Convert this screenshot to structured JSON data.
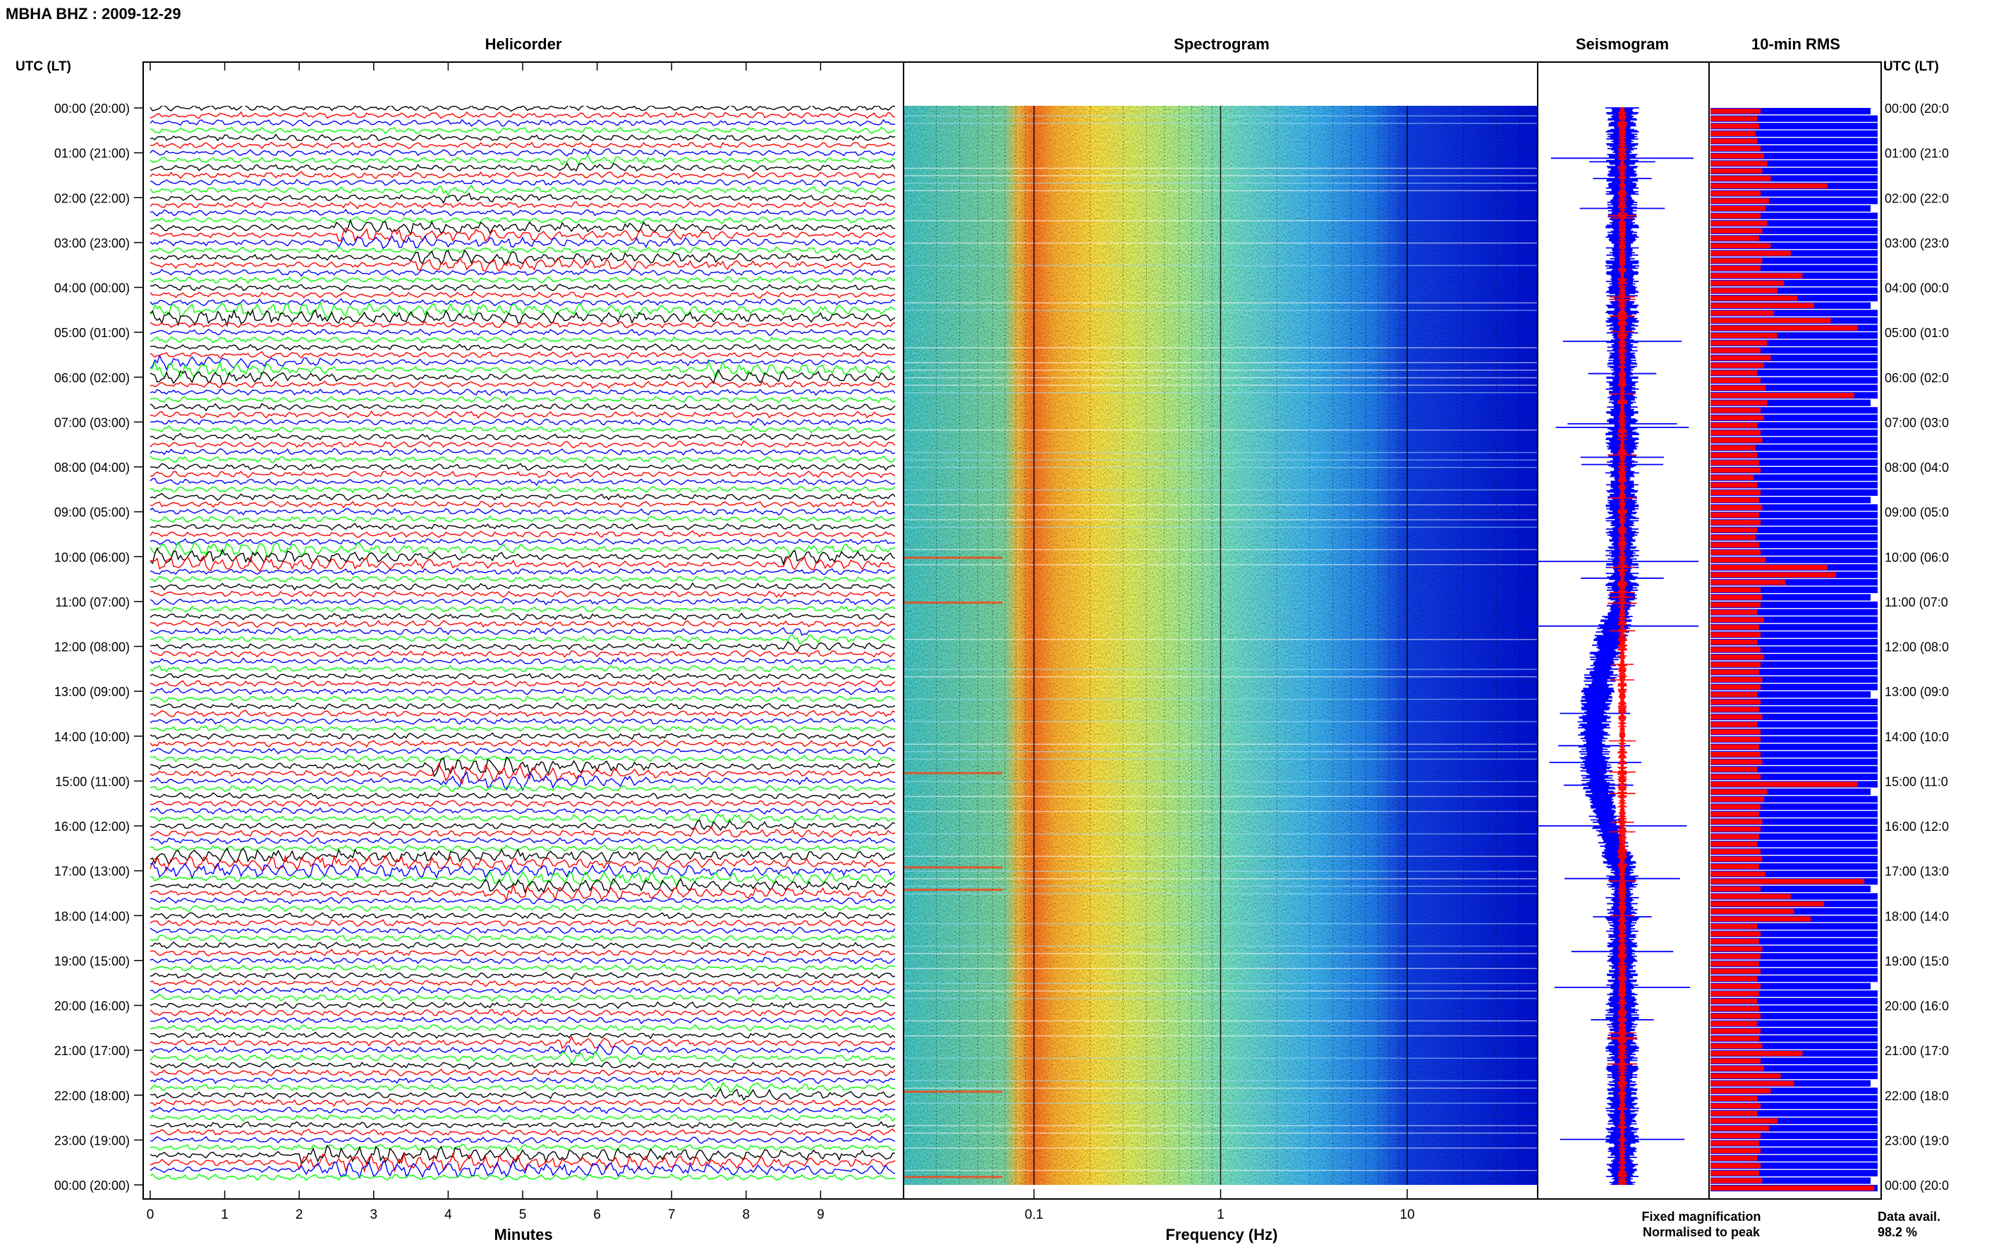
{
  "header": {
    "station": "MBHA BHZ : 2009-12-29",
    "time_label_left": "UTC (LT)",
    "time_label_right": "UTC (LT)"
  },
  "panels": {
    "helicorder_title": "Helicorder",
    "spectrogram_title": "Spectrogram",
    "seismogram_title": "Seismogram",
    "rms_title": "10-min RMS"
  },
  "colors": {
    "trace_black": "#000000",
    "trace_red": "#ff0000",
    "trace_blue": "#0000ff",
    "trace_green": "#00ff00",
    "rms_blue": "#0000ff",
    "rms_red": "#ff0000"
  },
  "chart_data": {
    "type": "heatmap",
    "time_labels": [
      "00:00 (20:00)",
      "01:00 (21:00)",
      "02:00 (22:00)",
      "03:00 (23:00)",
      "04:00 (00:00)",
      "05:00 (01:00)",
      "06:00 (02:00)",
      "07:00 (03:00)",
      "08:00 (04:00)",
      "09:00 (05:00)",
      "10:00 (06:00)",
      "11:00 (07:00)",
      "12:00 (08:00)",
      "13:00 (09:00)",
      "14:00 (10:00)",
      "15:00 (11:00)",
      "16:00 (12:00)",
      "17:00 (13:00)",
      "18:00 (14:00)",
      "19:00 (15:00)",
      "20:00 (16:00)",
      "21:00 (17:00)",
      "22:00 (18:00)",
      "23:00 (19:00)",
      "00:00 (20:00)"
    ],
    "time_labels_right_visible": [
      "00:00 (20:0",
      "01:00 (21:0",
      "02:00 (22:0",
      "03:00 (23:0",
      "04:00 (00:0",
      "05:00 (01:0",
      "06:00 (02:0",
      "07:00 (03:0",
      "08:00 (04:0",
      "09:00 (05:0",
      "10:00 (06:0",
      "11:00 (07:0",
      "12:00 (08:0",
      "13:00 (09:0",
      "14:00 (10:0",
      "15:00 (11:0",
      "16:00 (12:0",
      "17:00 (13:0",
      "18:00 (14:0",
      "19:00 (15:0",
      "20:00 (16:0",
      "21:00 (17:0",
      "22:00 (18:0",
      "23:00 (19:0",
      "00:00 (20:0"
    ],
    "helicorder": {
      "xlabel": "Minutes",
      "x_ticks": [
        "0",
        "1",
        "2",
        "3",
        "4",
        "5",
        "6",
        "7",
        "8",
        "9"
      ],
      "xlim": [
        0,
        10
      ],
      "lines_per_hour": 6,
      "trace_color_cycle": [
        "black",
        "red",
        "blue",
        "green"
      ],
      "events": [
        {
          "hour": 0.0,
          "minute": 1.1,
          "amp": 1.6,
          "dur": 0.4
        },
        {
          "hour": 1.2,
          "minute": 5.5,
          "amp": 1.8,
          "dur": 1.6
        },
        {
          "hour": 1.9,
          "minute": 3.8,
          "amp": 2.0,
          "dur": 1.0
        },
        {
          "hour": 2.8,
          "minute": 2.5,
          "amp": 3.0,
          "dur": 3.5
        },
        {
          "hour": 2.8,
          "minute": 6.3,
          "amp": 2.2,
          "dur": 2.0
        },
        {
          "hour": 3.4,
          "minute": 3.5,
          "amp": 2.6,
          "dur": 6.0
        },
        {
          "hour": 4.6,
          "minute": 0.0,
          "amp": 3.0,
          "dur": 10.0
        },
        {
          "hour": 5.8,
          "minute": 0.0,
          "amp": 3.0,
          "dur": 2.5
        },
        {
          "hour": 5.9,
          "minute": 7.5,
          "amp": 3.2,
          "dur": 2.5
        },
        {
          "hour": 10.0,
          "minute": 0.0,
          "amp": 3.0,
          "dur": 5.0
        },
        {
          "hour": 10.0,
          "minute": 8.5,
          "amp": 3.0,
          "dur": 1.5
        },
        {
          "hour": 11.8,
          "minute": 8.5,
          "amp": 2.0,
          "dur": 1.0
        },
        {
          "hour": 14.8,
          "minute": 3.8,
          "amp": 4.0,
          "dur": 3.0
        },
        {
          "hour": 16.0,
          "minute": 7.2,
          "amp": 2.2,
          "dur": 2.0
        },
        {
          "hour": 16.8,
          "minute": 0.0,
          "amp": 3.0,
          "dur": 10.0
        },
        {
          "hour": 17.3,
          "minute": 4.5,
          "amp": 3.2,
          "dur": 5.5
        },
        {
          "hour": 21.0,
          "minute": 5.5,
          "amp": 2.2,
          "dur": 1.5
        },
        {
          "hour": 21.9,
          "minute": 7.5,
          "amp": 2.2,
          "dur": 2.0
        },
        {
          "hour": 23.5,
          "minute": 2.0,
          "amp": 3.5,
          "dur": 8.0
        }
      ]
    },
    "spectrogram": {
      "xlabel": "Frequency (Hz)",
      "x_scale": "log",
      "xlim": [
        0.02,
        50
      ],
      "x_ticks": [
        "0.1",
        "1",
        "10"
      ],
      "x_tick_values": [
        0.1,
        1,
        10
      ],
      "high_power_band_hz": [
        0.11,
        0.35
      ],
      "rolloff_hz": 10
    },
    "seismogram": {
      "legend_fixed": "Fixed magnification",
      "legend_normalised": "Normalised to peak",
      "legend_fixed_color": "#0000ff",
      "legend_normalised_color": "#ff0000"
    },
    "rms": {
      "bins_per_hour": 6,
      "red_relative": [
        0.3,
        0.28,
        0.29,
        0.27,
        0.28,
        0.3,
        0.32,
        0.34,
        0.31,
        0.36,
        0.7,
        0.3,
        0.35,
        0.33,
        0.3,
        0.34,
        0.31,
        0.29,
        0.36,
        0.48,
        0.31,
        0.3,
        0.55,
        0.44,
        0.4,
        0.52,
        0.62,
        0.38,
        0.72,
        0.88,
        0.4,
        0.34,
        0.3,
        0.36,
        0.32,
        0.28,
        0.3,
        0.33,
        0.86,
        0.34,
        0.3,
        0.32,
        0.28,
        0.3,
        0.31,
        0.27,
        0.28,
        0.29,
        0.3,
        0.26,
        0.28,
        0.3,
        0.29,
        0.31,
        0.29,
        0.3,
        0.28,
        0.27,
        0.29,
        0.3,
        0.33,
        0.7,
        0.75,
        0.45,
        0.3,
        0.31,
        0.3,
        0.28,
        0.32,
        0.29,
        0.3,
        0.28,
        0.3,
        0.32,
        0.3,
        0.29,
        0.31,
        0.3,
        0.28,
        0.3,
        0.29,
        0.31,
        0.28,
        0.3,
        0.3,
        0.29,
        0.3,
        0.31,
        0.28,
        0.3,
        0.88,
        0.34,
        0.32,
        0.3,
        0.29,
        0.31,
        0.3,
        0.29,
        0.28,
        0.3,
        0.31,
        0.29,
        0.33,
        0.92,
        0.3,
        0.48,
        0.68,
        0.5,
        0.6,
        0.28,
        0.3,
        0.29,
        0.31,
        0.3,
        0.29,
        0.3,
        0.28,
        0.3,
        0.29,
        0.28,
        0.29,
        0.3,
        0.28,
        0.3,
        0.29,
        0.31,
        0.55,
        0.3,
        0.32,
        0.42,
        0.5,
        0.36,
        0.28,
        0.3,
        0.28,
        0.4,
        0.35,
        0.3,
        0.29,
        0.3,
        0.28,
        0.3,
        0.29,
        0.31,
        0.98,
        0.4
      ]
    },
    "data_availability": {
      "label": "Data avail.",
      "value": "98.2 %"
    }
  }
}
